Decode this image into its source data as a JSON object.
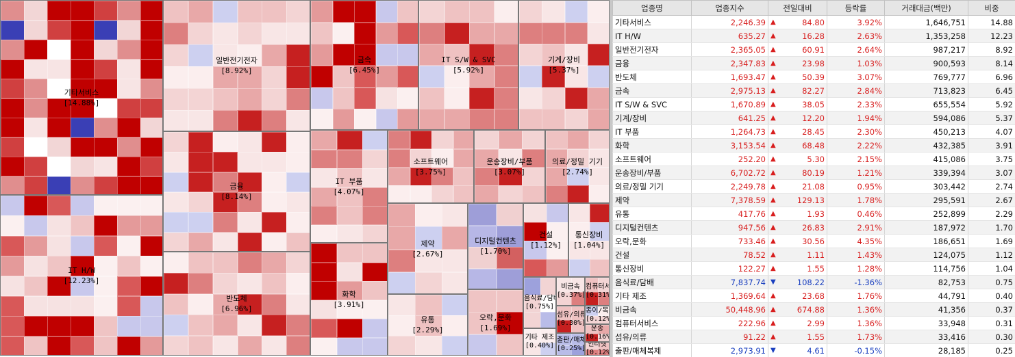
{
  "colors": {
    "up": "#d81e1e",
    "down": "#1a3fbf"
  },
  "treemap": {
    "sectors": [
      {
        "name": "기타서비스",
        "pct": "[14.88%]",
        "tone": "up3"
      },
      {
        "name": "IT H/W",
        "pct": "[12.23%]",
        "tone": "up2"
      },
      {
        "name": "일반전기전자",
        "pct": "[8.92%]",
        "tone": "up1"
      },
      {
        "name": "금융",
        "pct": "[8.14%]",
        "tone": "up1"
      },
      {
        "name": "반도체",
        "pct": "[6.96%]",
        "tone": "up1"
      },
      {
        "name": "금속",
        "pct": "[6.45%]",
        "tone": "up2"
      },
      {
        "name": "IT S/W & SVC",
        "pct": "[5.92%]",
        "tone": "up1"
      },
      {
        "name": "기계/장비",
        "pct": "[5.37%]",
        "tone": "up1"
      },
      {
        "name": "IT 부품",
        "pct": "[4.07%]",
        "tone": "up1"
      },
      {
        "name": "화학",
        "pct": "[3.91%]",
        "tone": "up2"
      },
      {
        "name": "소프트웨어",
        "pct": "[3.75%]",
        "tone": "up1"
      },
      {
        "name": "운송장비/부품",
        "pct": "[3.07%]",
        "tone": "up1"
      },
      {
        "name": "의료/정밀 기기",
        "pct": "[2.74%]",
        "tone": "up1"
      },
      {
        "name": "제약",
        "pct": "[2.67%]",
        "tone": "up1"
      },
      {
        "name": "유통",
        "pct": "[2.29%]",
        "tone": "up1"
      },
      {
        "name": "디지털컨텐츠",
        "pct": "[1.70%]",
        "tone": "mix"
      },
      {
        "name": "오락,문화",
        "pct": "[1.69%]",
        "tone": "up2"
      },
      {
        "name": "건설",
        "pct": "[1.12%]",
        "tone": "up2"
      },
      {
        "name": "통신장비",
        "pct": "[1.04%]",
        "tone": "up1"
      },
      {
        "name": "음식료/담배",
        "pct": "[0.75%]",
        "tone": "dn"
      },
      {
        "name": "비금속",
        "pct": "[0.37%]",
        "tone": "up1"
      },
      {
        "name": "컴퓨터서비스",
        "pct": "[0.31%]",
        "tone": "up1"
      },
      {
        "name": "섬유/의류",
        "pct": "[0.30%]",
        "tone": "up1"
      },
      {
        "name": "기타 제조",
        "pct": "[0.40%]",
        "tone": "up1"
      },
      {
        "name": "출판/매체복제",
        "pct": "[0.25%]",
        "tone": "dn"
      },
      {
        "name": "종이/목재",
        "pct": "[0.12%]",
        "tone": "up1"
      },
      {
        "name": "운송",
        "pct": "[0.16%]",
        "tone": "up1"
      },
      {
        "name": "인터넷",
        "pct": "[0.12%]",
        "tone": "up1"
      }
    ]
  },
  "table": {
    "headers": [
      "업종명",
      "업종지수",
      "전일대비",
      "등락률",
      "거래대금(백만)",
      "비중"
    ],
    "rows": [
      {
        "name": "기타서비스",
        "index": "2,246.39",
        "dir": "up",
        "change": "84.80",
        "rate": "3.92%",
        "volume": "1,646,751",
        "weight": "14.88"
      },
      {
        "name": "IT H/W",
        "index": "635.27",
        "dir": "up",
        "change": "16.28",
        "rate": "2.63%",
        "volume": "1,353,258",
        "weight": "12.23"
      },
      {
        "name": "일반전기전자",
        "index": "2,365.05",
        "dir": "up",
        "change": "60.91",
        "rate": "2.64%",
        "volume": "987,217",
        "weight": "8.92"
      },
      {
        "name": "금융",
        "index": "2,347.83",
        "dir": "up",
        "change": "23.98",
        "rate": "1.03%",
        "volume": "900,593",
        "weight": "8.14"
      },
      {
        "name": "반도체",
        "index": "1,693.47",
        "dir": "up",
        "change": "50.39",
        "rate": "3.07%",
        "volume": "769,777",
        "weight": "6.96"
      },
      {
        "name": "금속",
        "index": "2,975.13",
        "dir": "up",
        "change": "82.27",
        "rate": "2.84%",
        "volume": "713,823",
        "weight": "6.45"
      },
      {
        "name": "IT S/W & SVC",
        "index": "1,670.89",
        "dir": "up",
        "change": "38.05",
        "rate": "2.33%",
        "volume": "655,554",
        "weight": "5.92"
      },
      {
        "name": "기계/장비",
        "index": "641.25",
        "dir": "up",
        "change": "12.20",
        "rate": "1.94%",
        "volume": "594,086",
        "weight": "5.37"
      },
      {
        "name": "IT 부품",
        "index": "1,264.73",
        "dir": "up",
        "change": "28.45",
        "rate": "2.30%",
        "volume": "450,213",
        "weight": "4.07"
      },
      {
        "name": "화학",
        "index": "3,153.54",
        "dir": "up",
        "change": "68.48",
        "rate": "2.22%",
        "volume": "432,385",
        "weight": "3.91"
      },
      {
        "name": "소프트웨어",
        "index": "252.20",
        "dir": "up",
        "change": "5.30",
        "rate": "2.15%",
        "volume": "415,086",
        "weight": "3.75"
      },
      {
        "name": "운송장비/부품",
        "index": "6,702.72",
        "dir": "up",
        "change": "80.19",
        "rate": "1.21%",
        "volume": "339,394",
        "weight": "3.07"
      },
      {
        "name": "의료/정밀 기기",
        "index": "2,249.78",
        "dir": "up",
        "change": "21.08",
        "rate": "0.95%",
        "volume": "303,442",
        "weight": "2.74"
      },
      {
        "name": "제약",
        "index": "7,378.59",
        "dir": "up",
        "change": "129.13",
        "rate": "1.78%",
        "volume": "295,591",
        "weight": "2.67"
      },
      {
        "name": "유통",
        "index": "417.76",
        "dir": "up",
        "change": "1.93",
        "rate": "0.46%",
        "volume": "252,899",
        "weight": "2.29"
      },
      {
        "name": "디지털컨텐츠",
        "index": "947.56",
        "dir": "up",
        "change": "26.83",
        "rate": "2.91%",
        "volume": "187,972",
        "weight": "1.70"
      },
      {
        "name": "오락,문화",
        "index": "733.46",
        "dir": "up",
        "change": "30.56",
        "rate": "4.35%",
        "volume": "186,651",
        "weight": "1.69"
      },
      {
        "name": "건설",
        "index": "78.52",
        "dir": "up",
        "change": "1.11",
        "rate": "1.43%",
        "volume": "124,075",
        "weight": "1.12"
      },
      {
        "name": "통신장비",
        "index": "122.27",
        "dir": "up",
        "change": "1.55",
        "rate": "1.28%",
        "volume": "114,756",
        "weight": "1.04"
      },
      {
        "name": "음식료/담배",
        "index": "7,837.74",
        "dir": "down",
        "change": "108.22",
        "rate": "-1.36%",
        "volume": "82,753",
        "weight": "0.75"
      },
      {
        "name": "기타 제조",
        "index": "1,369.64",
        "dir": "up",
        "change": "23.68",
        "rate": "1.76%",
        "volume": "44,791",
        "weight": "0.40"
      },
      {
        "name": "비금속",
        "index": "50,448.96",
        "dir": "up",
        "change": "674.88",
        "rate": "1.36%",
        "volume": "41,356",
        "weight": "0.37"
      },
      {
        "name": "컴퓨터서비스",
        "index": "222.96",
        "dir": "up",
        "change": "2.99",
        "rate": "1.36%",
        "volume": "33,948",
        "weight": "0.31"
      },
      {
        "name": "섬유/의류",
        "index": "91.22",
        "dir": "up",
        "change": "1.55",
        "rate": "1.73%",
        "volume": "33,416",
        "weight": "0.30"
      },
      {
        "name": "출판/매체복제",
        "index": "2,973.91",
        "dir": "down",
        "change": "4.61",
        "rate": "-0.15%",
        "volume": "28,185",
        "weight": "0.25"
      }
    ]
  }
}
